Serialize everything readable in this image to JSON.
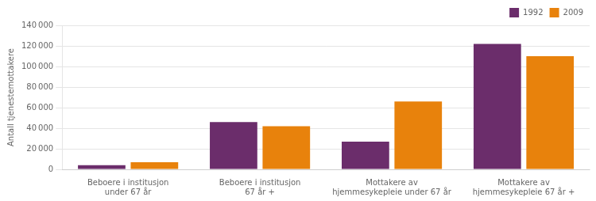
{
  "chart_data": {
    "type": "bar",
    "categories": [
      "Beboere i institusjon\nunder 67 år",
      "Beboere i institusjon\n67 år +",
      "Mottakere av\nhjemmesykepleie under 67 år",
      "Mottakere av\nhjemmesykepleie 67 år +"
    ],
    "series": [
      {
        "name": "1992",
        "color": "#6B2D6B",
        "values": [
          4000,
          46000,
          27000,
          122000
        ]
      },
      {
        "name": "2009",
        "color": "#E8820C",
        "values": [
          7000,
          42000,
          66000,
          110000
        ]
      }
    ],
    "ylabel": "Antall tjenestemottakere",
    "ylim": [
      0,
      140000
    ],
    "yticks": [
      0,
      {
        "value": 20000,
        "label": "20 000"
      },
      {
        "value": 40000,
        "label": "40 000"
      },
      {
        "value": 60000,
        "label": "60 000"
      },
      {
        "value": 80000,
        "label": "80 000"
      },
      {
        "value": 100000,
        "label": "100 000"
      },
      {
        "value": 120000,
        "label": "120 000"
      },
      {
        "value": 140000,
        "label": "140 000"
      }
    ],
    "grid": true,
    "legend": "upper right"
  }
}
